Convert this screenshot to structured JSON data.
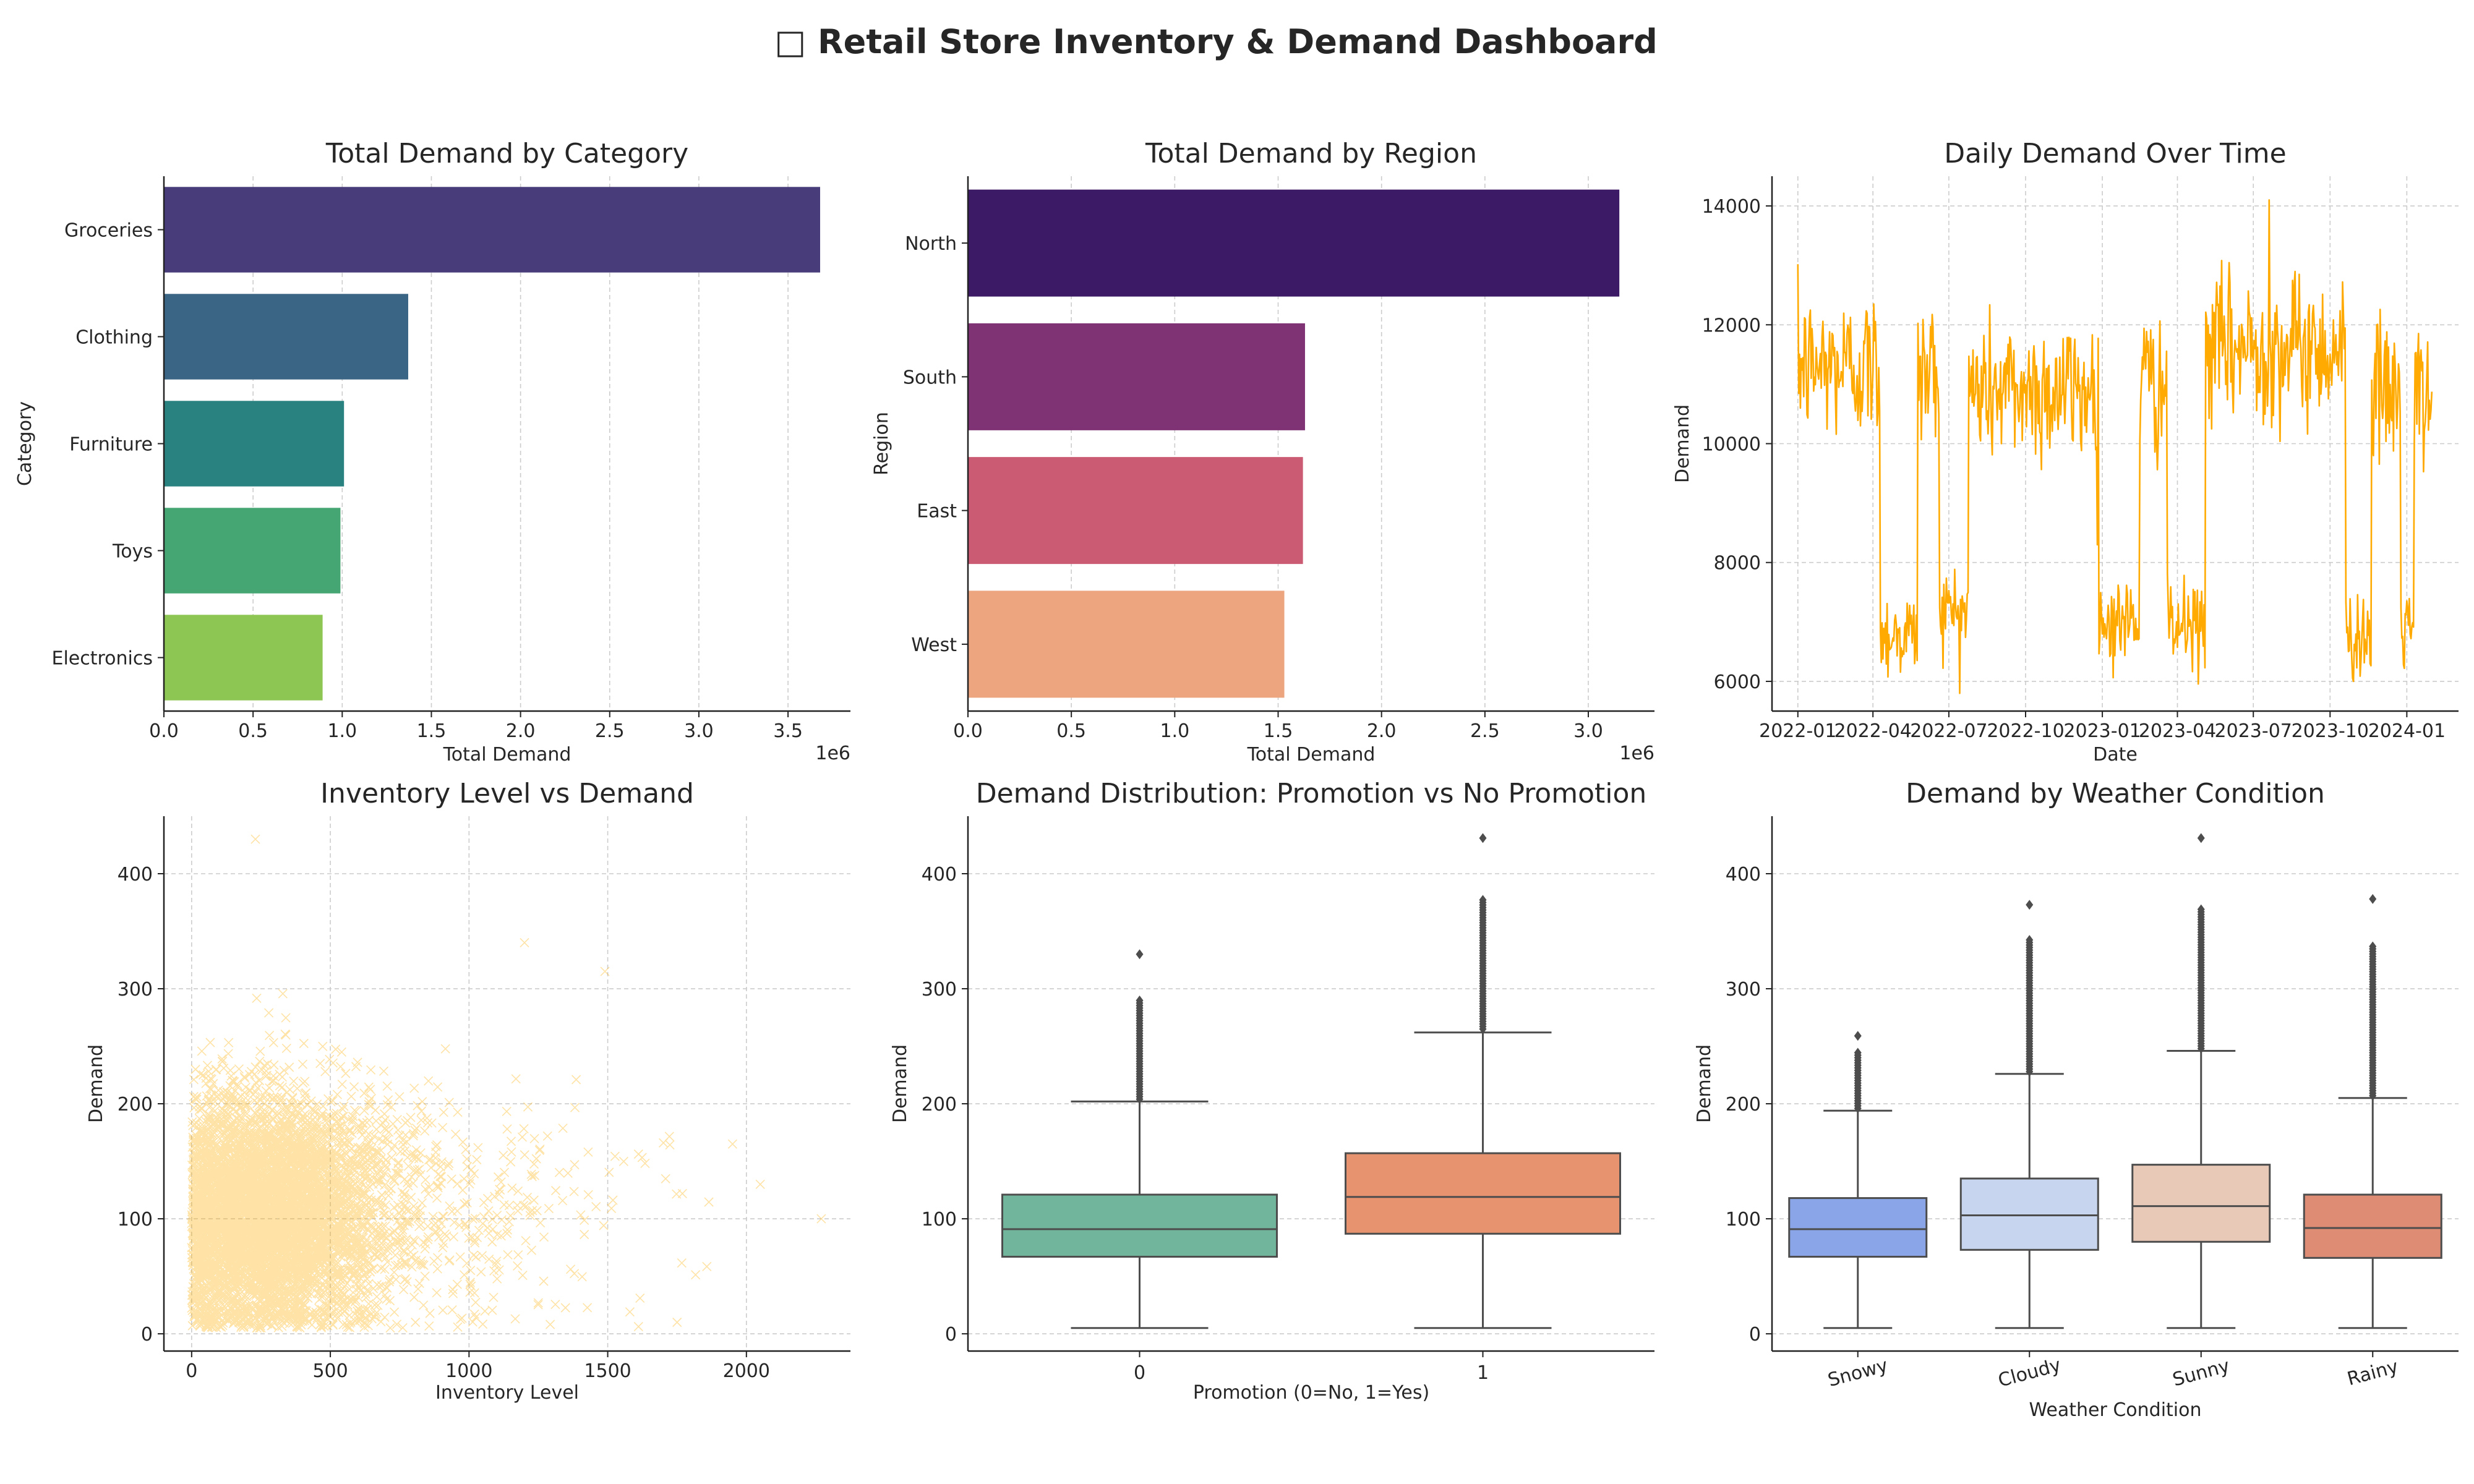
{
  "title": "□ Retail Store Inventory & Demand Dashboard",
  "colors": {
    "grid": "#cccccc",
    "axis": "#222222",
    "text": "#262626",
    "line": "#ffaa00",
    "scatter": "#ffb000",
    "category": [
      "#483d7a",
      "#3b6585",
      "#2a8280",
      "#45a673",
      "#8dc653"
    ],
    "region": [
      "#3d1a66",
      "#7f3374",
      "#cb5b72",
      "#eca57f"
    ],
    "promo": [
      "#71b59c",
      "#e8936f"
    ],
    "weather": [
      "#8aa6e8",
      "#c7d5ee",
      "#e8c8b7",
      "#de8c73"
    ]
  },
  "chart_data": [
    {
      "type": "bar",
      "orientation": "horizontal",
      "title": "Total Demand by Category",
      "xlabel": "Total Demand",
      "ylabel": "Category",
      "offset_label": "1e6",
      "categories": [
        "Groceries",
        "Clothing",
        "Furniture",
        "Toys",
        "Electronics"
      ],
      "values": [
        3680000,
        1370000,
        1010000,
        990000,
        890000
      ],
      "xlim": [
        0,
        3850000
      ],
      "xticks": [
        0,
        500000,
        1000000,
        1500000,
        2000000,
        2500000,
        3000000,
        3500000
      ],
      "xtick_labels": [
        "0.0",
        "0.5",
        "1.0",
        "1.5",
        "2.0",
        "2.5",
        "3.0",
        "3.5"
      ],
      "grid": true
    },
    {
      "type": "bar",
      "orientation": "horizontal",
      "title": "Total Demand by Region",
      "xlabel": "Total Demand",
      "ylabel": "Region",
      "offset_label": "1e6",
      "categories": [
        "North",
        "South",
        "East",
        "West"
      ],
      "values": [
        3150000,
        1630000,
        1620000,
        1530000
      ],
      "xlim": [
        0,
        3320000
      ],
      "xticks": [
        0,
        500000,
        1000000,
        1500000,
        2000000,
        2500000,
        3000000
      ],
      "xtick_labels": [
        "0.0",
        "0.5",
        "1.0",
        "1.5",
        "2.0",
        "2.5",
        "3.0"
      ],
      "grid": true
    },
    {
      "type": "line",
      "title": "Daily Demand Over Time",
      "xlabel": "Date",
      "ylabel": "Demand",
      "x_start": "2022-01-01",
      "x_end": "2024-01-31",
      "xlim": [
        "2021-12-01",
        "2024-03-03"
      ],
      "ylim": [
        5500,
        14500
      ],
      "yticks": [
        6000,
        8000,
        10000,
        12000,
        14000
      ],
      "xtick_labels": [
        "2022-01",
        "2022-04",
        "2022-07",
        "2022-10",
        "2023-01",
        "2023-04",
        "2023-07",
        "2023-10",
        "2024-01"
      ],
      "segments": [
        {
          "start": "2022-01-01",
          "end": "2022-04-10",
          "mean": 11300
        },
        {
          "start": "2022-04-10",
          "end": "2022-05-25",
          "mean": 6800
        },
        {
          "start": "2022-05-25",
          "end": "2022-06-20",
          "mean": 11200
        },
        {
          "start": "2022-06-20",
          "end": "2022-07-25",
          "mean": 7200
        },
        {
          "start": "2022-07-25",
          "end": "2022-12-28",
          "mean": 10900
        },
        {
          "start": "2022-12-28",
          "end": "2023-02-15",
          "mean": 7000
        },
        {
          "start": "2023-02-15",
          "end": "2023-03-20",
          "mean": 11000
        },
        {
          "start": "2023-03-20",
          "end": "2023-05-05",
          "mean": 6900
        },
        {
          "start": "2023-05-05",
          "end": "2023-10-20",
          "mean": 11600
        },
        {
          "start": "2023-10-20",
          "end": "2023-11-20",
          "mean": 6800
        },
        {
          "start": "2023-11-20",
          "end": "2023-12-25",
          "mean": 10800
        },
        {
          "start": "2023-12-25",
          "end": "2024-01-10",
          "mean": 6900
        },
        {
          "start": "2024-01-10",
          "end": "2024-01-31",
          "mean": 10700
        }
      ],
      "peak": {
        "x": "2023-07-20",
        "y": 14100
      },
      "grid": true
    },
    {
      "type": "scatter",
      "title": "Inventory Level vs Demand",
      "xlabel": "Inventory Level",
      "ylabel": "Demand",
      "marker": "x",
      "xlim": [
        -100,
        2375
      ],
      "ylim": [
        -15,
        450
      ],
      "xticks": [
        0,
        500,
        1000,
        1500,
        2000
      ],
      "yticks": [
        0,
        100,
        200,
        300,
        400
      ],
      "cluster": {
        "x_center": 250,
        "y_center": 110,
        "dense_x_range": [
          0,
          700
        ],
        "dense_y_range": [
          20,
          280
        ]
      },
      "outliers": [
        [
          2270,
          100
        ],
        [
          2050,
          130
        ],
        [
          1750,
          10
        ],
        [
          1490,
          315
        ],
        [
          230,
          430
        ],
        [
          1200,
          340
        ],
        [
          1950,
          165
        ]
      ],
      "grid": true
    },
    {
      "type": "box",
      "title": "Demand Distribution: Promotion vs No Promotion",
      "xlabel": "Promotion (0=No, 1=Yes)",
      "ylabel": "Demand",
      "categories": [
        "0",
        "1"
      ],
      "boxes": [
        {
          "label": "0",
          "whisker_low": 5,
          "q1": 67,
          "median": 91,
          "q3": 121,
          "whisker_high": 202,
          "outliers_from": 204,
          "outliers_to": 290,
          "max": 330
        },
        {
          "label": "1",
          "whisker_low": 5,
          "q1": 87,
          "median": 119,
          "q3": 157,
          "whisker_high": 262,
          "outliers_from": 265,
          "outliers_to": 378,
          "max": 431
        }
      ],
      "ylim": [
        -15,
        450
      ],
      "yticks": [
        0,
        100,
        200,
        300,
        400
      ],
      "grid": true
    },
    {
      "type": "box",
      "title": "Demand by Weather Condition",
      "xlabel": "Weather Condition",
      "ylabel": "Demand",
      "categories": [
        "Snowy",
        "Cloudy",
        "Sunny",
        "Rainy"
      ],
      "boxes": [
        {
          "label": "Snowy",
          "whisker_low": 5,
          "q1": 67,
          "median": 91,
          "q3": 118,
          "whisker_high": 194,
          "outliers_from": 196,
          "outliers_to": 245,
          "max": 259
        },
        {
          "label": "Cloudy",
          "whisker_low": 5,
          "q1": 73,
          "median": 103,
          "q3": 135,
          "whisker_high": 226,
          "outliers_from": 228,
          "outliers_to": 343,
          "max": 373
        },
        {
          "label": "Sunny",
          "whisker_low": 5,
          "q1": 80,
          "median": 111,
          "q3": 147,
          "whisker_high": 246,
          "outliers_from": 248,
          "outliers_to": 370,
          "max": 431
        },
        {
          "label": "Rainy",
          "whisker_low": 5,
          "q1": 66,
          "median": 92,
          "q3": 121,
          "whisker_high": 205,
          "outliers_from": 207,
          "outliers_to": 338,
          "max": 378
        }
      ],
      "ylim": [
        -15,
        450
      ],
      "yticks": [
        0,
        100,
        200,
        300,
        400
      ],
      "xtick_rotation": 15,
      "grid": true
    }
  ]
}
